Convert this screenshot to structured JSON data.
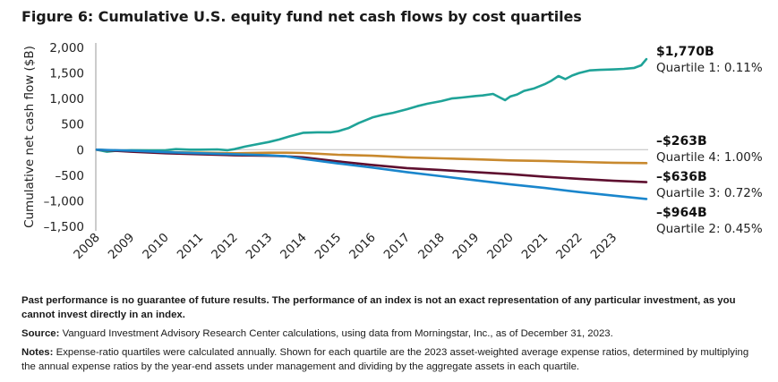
{
  "title": "Figure 6: Cumulative U.S. equity fund net cash flows by cost quartiles",
  "chart_data": {
    "type": "line",
    "title": "Figure 6: Cumulative U.S. equity fund net cash flows by cost quartiles",
    "xlabel": "",
    "ylabel": "Cumulative net cash flow ($B)",
    "xlim": [
      2008,
      2023.95
    ],
    "ylim": [
      -1500,
      2000
    ],
    "yticks": [
      2000,
      1500,
      1000,
      500,
      0,
      -500,
      -1000,
      -1500
    ],
    "ytick_labels": [
      "2,000",
      "1,500",
      "1,000",
      "500",
      "0",
      "–500",
      "–1,000",
      "–1,500"
    ],
    "xticks": [
      2008,
      2009,
      2010,
      2011,
      2012,
      2013,
      2014,
      2015,
      2016,
      2017,
      2018,
      2019,
      2020,
      2021,
      2022,
      2023
    ],
    "xtick_labels": [
      "2008",
      "2009",
      "2010",
      "2011",
      "2012",
      "2013",
      "2014",
      "2015",
      "2016",
      "2017",
      "2018",
      "2019",
      "2020",
      "2021",
      "2022",
      "2023"
    ],
    "grid": false,
    "zero_line": true,
    "series": [
      {
        "name": "Quartile 1: 0.11%",
        "end_value_label": "$1,770B",
        "color": "#1fa398",
        "x": [
          2008,
          2008.3,
          2008.6,
          2009,
          2009.5,
          2010,
          2010.3,
          2010.7,
          2011,
          2011.5,
          2011.8,
          2012,
          2012.3,
          2012.6,
          2013,
          2013.3,
          2013.6,
          2014,
          2014.4,
          2014.8,
          2015,
          2015.3,
          2015.6,
          2016,
          2016.3,
          2016.6,
          2017,
          2017.3,
          2017.6,
          2018,
          2018.3,
          2018.6,
          2019,
          2019.2,
          2019.5,
          2019.7,
          2019.85,
          2020,
          2020.2,
          2020.4,
          2020.7,
          2021,
          2021.2,
          2021.4,
          2021.6,
          2021.8,
          2022,
          2022.3,
          2022.6,
          2023,
          2023.3,
          2023.6,
          2023.8,
          2023.95
        ],
        "values": [
          0,
          -40,
          -20,
          -10,
          -15,
          -10,
          10,
          0,
          0,
          5,
          -10,
          10,
          60,
          100,
          150,
          200,
          260,
          330,
          340,
          340,
          360,
          420,
          520,
          630,
          680,
          720,
          790,
          850,
          900,
          950,
          1000,
          1020,
          1050,
          1060,
          1090,
          1020,
          970,
          1040,
          1080,
          1150,
          1200,
          1280,
          1350,
          1440,
          1380,
          1450,
          1500,
          1550,
          1560,
          1570,
          1580,
          1600,
          1650,
          1770
        ]
      },
      {
        "name": "Quartile 4: 1.00%",
        "end_value_label": "–$263B",
        "color": "#c8892e",
        "x": [
          2008,
          2009,
          2010,
          2011,
          2012,
          2013,
          2013.5,
          2014,
          2015,
          2016,
          2017,
          2018,
          2019,
          2020,
          2021,
          2022,
          2023,
          2023.95
        ],
        "values": [
          0,
          -30,
          -50,
          -60,
          -70,
          -60,
          -60,
          -65,
          -100,
          -120,
          -150,
          -170,
          -190,
          -210,
          -220,
          -240,
          -255,
          -263
        ]
      },
      {
        "name": "Quartile 3: 0.72%",
        "end_value_label": "–$636B",
        "color": "#5e0f2f",
        "x": [
          2008,
          2009,
          2010,
          2011,
          2012,
          2013,
          2013.5,
          2014,
          2015,
          2016,
          2017,
          2018,
          2019,
          2020,
          2021,
          2022,
          2023,
          2023.95
        ],
        "values": [
          0,
          -40,
          -70,
          -90,
          -110,
          -120,
          -130,
          -150,
          -230,
          -300,
          -360,
          -400,
          -440,
          -480,
          -530,
          -570,
          -610,
          -636
        ]
      },
      {
        "name": "Quartile 2: 0.45%",
        "end_value_label": "–$964B",
        "color": "#1a86cc",
        "x": [
          2008,
          2009,
          2010,
          2011,
          2012,
          2013,
          2013.5,
          2014,
          2015,
          2016,
          2017,
          2018,
          2019,
          2020,
          2021,
          2022,
          2023,
          2023.95
        ],
        "values": [
          0,
          -20,
          -50,
          -70,
          -90,
          -110,
          -130,
          -180,
          -270,
          -350,
          -440,
          -520,
          -600,
          -680,
          -750,
          -830,
          -900,
          -964
        ]
      }
    ],
    "end_labels": [
      {
        "value": "$1,770B",
        "label": "Quartile 1: 0.11%"
      },
      {
        "value": "–$263B",
        "label": "Quartile 4: 1.00%"
      },
      {
        "value": "–$636B",
        "label": "Quartile 3: 0.72%"
      },
      {
        "value": "–$964B",
        "label": "Quartile 2: 0.45%"
      }
    ]
  },
  "footnotes": {
    "disclaimer": "Past performance is no guarantee of future results. The performance of an index is not an exact representation of any particular investment, as you cannot invest directly in an index.",
    "source_label": "Source:",
    "source_text": " Vanguard Investment Advisory Research Center calculations, using data from Morningstar, Inc., as of December 31, 2023.",
    "notes_label": "Notes:",
    "notes_text": " Expense-ratio quartiles were calculated annually. Shown for each quartile are the 2023 asset-weighted average expense ratios, determined by multiplying the annual expense ratios by the year-end assets under management and dividing by the aggregate assets in each quartile."
  }
}
